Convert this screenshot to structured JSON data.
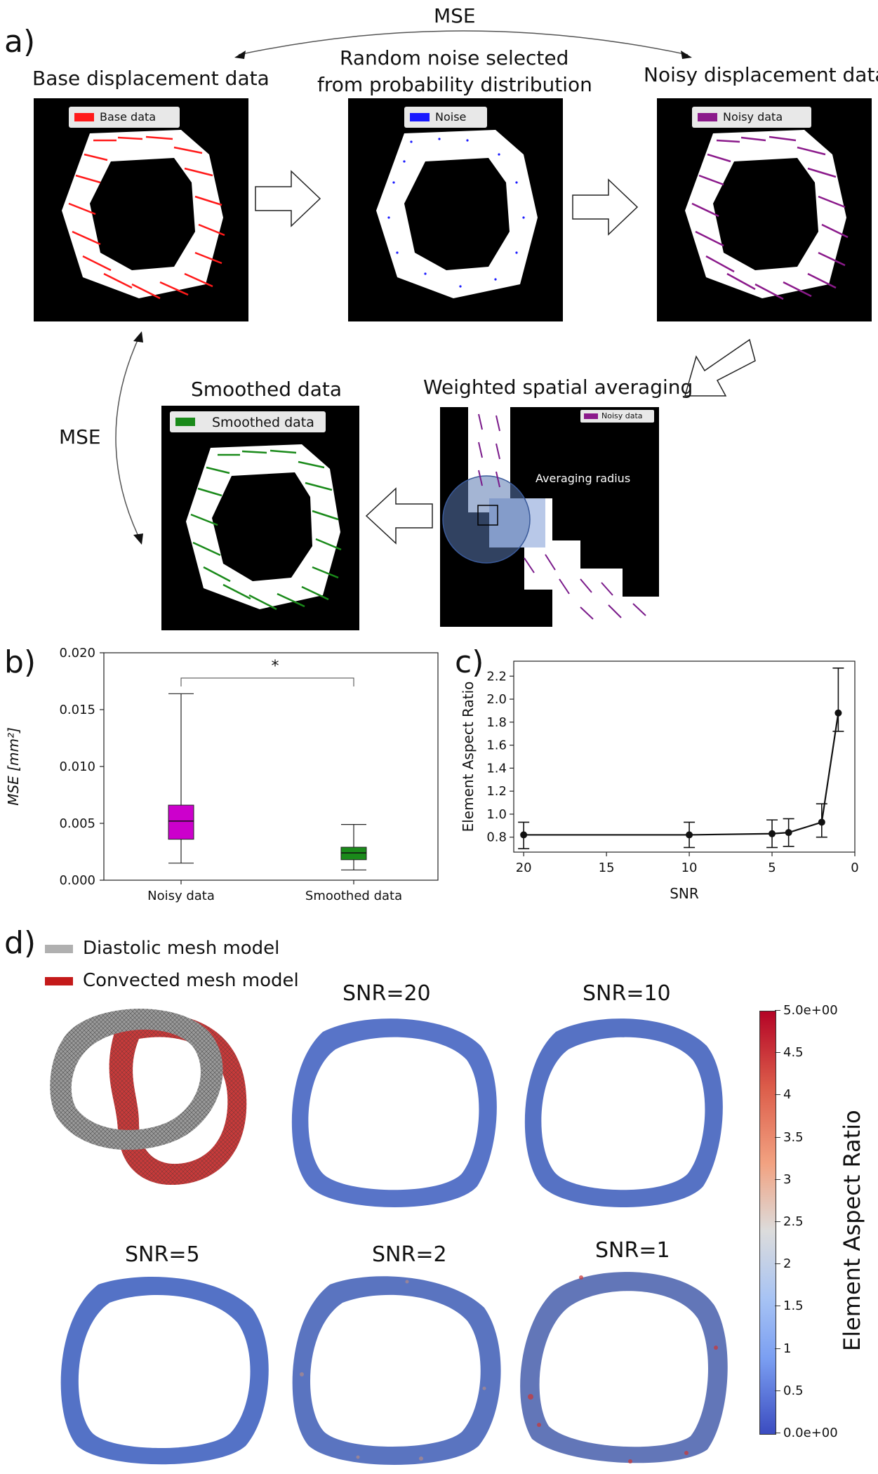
{
  "panel_labels": {
    "a": "a)",
    "b": "b)",
    "c": "c)",
    "d": "d)"
  },
  "panel_a": {
    "mse_top": "MSE",
    "mse_left": "MSE",
    "base_title": "Base displacement data",
    "noise_title_1": "Random noise selected",
    "noise_title_2": "from probability distribution",
    "noisy_title": "Noisy displacement data",
    "averaging_title": "Weighted spatial averaging",
    "smoothed_title": "Smoothed data",
    "legend_base": "Base data",
    "legend_noise": "Noise",
    "legend_noisy": "Noisy data",
    "legend_smoothed": "Smoothed data",
    "legend_zoom_noisy": "Noisy data",
    "averaging_radius": "Averaging radius",
    "colors": {
      "base": "#ff1a1a",
      "noise": "#1a1aff",
      "noisy": "#8b1a8b",
      "smoothed": "#1a8a1a"
    }
  },
  "panel_b": {
    "ylabel": "MSE [mm²]",
    "significance": "*",
    "chart_data": {
      "type": "box",
      "categories": [
        "Noisy data",
        "Smoothed data"
      ],
      "yticks": [
        "0.000",
        "0.005",
        "0.010",
        "0.015",
        "0.020"
      ],
      "ylim": [
        0,
        0.02
      ],
      "boxes": [
        {
          "name": "Noisy data",
          "min": 0.0015,
          "q1": 0.0036,
          "median": 0.0052,
          "q3": 0.0066,
          "max": 0.0164,
          "color": "#cc00cc"
        },
        {
          "name": "Smoothed data",
          "min": 0.0009,
          "q1": 0.0018,
          "median": 0.0024,
          "q3": 0.0029,
          "max": 0.0049,
          "color": "#1a8a1a"
        }
      ]
    }
  },
  "panel_c": {
    "ylabel": "Element Aspect Ratio",
    "xlabel": "SNR",
    "chart_data": {
      "type": "line",
      "x": [
        20,
        10,
        5,
        4,
        2,
        1
      ],
      "y": [
        0.82,
        0.82,
        0.83,
        0.84,
        0.93,
        1.88
      ],
      "yerr_low": [
        0.7,
        0.71,
        0.71,
        0.72,
        0.8,
        1.72
      ],
      "yerr_high": [
        0.93,
        0.93,
        0.95,
        0.96,
        1.09,
        2.27
      ],
      "xticks": [
        "20",
        "15",
        "10",
        "5",
        "0"
      ],
      "yticks": [
        "0.8",
        "1.0",
        "1.2",
        "1.4",
        "1.6",
        "1.8",
        "2.0",
        "2.2"
      ],
      "xlim": [
        20.6,
        0
      ],
      "ylim": [
        0.67,
        2.33
      ]
    }
  },
  "panel_d": {
    "legend_diastolic": "Diastolic mesh model",
    "legend_convected": "Convected mesh model",
    "snr_labels": [
      "SNR=20",
      "SNR=10",
      "SNR=5",
      "SNR=2",
      "SNR=1"
    ],
    "colorbar_title": "Element Aspect Ratio",
    "colorbar_ticks": [
      "5.0e+00",
      "4.5",
      "4",
      "3.5",
      "3",
      "2.5",
      "2",
      "1.5",
      "1",
      "0.5",
      "0.0e+00"
    ]
  }
}
